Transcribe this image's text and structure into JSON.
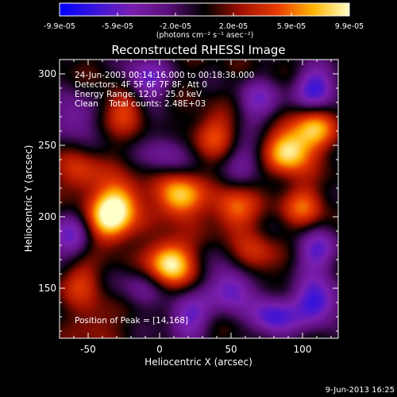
{
  "colorbar": {
    "ticks": [
      "-9.9e-05",
      "-5.9e-05",
      "-2.0e-05",
      "2.0e-05",
      "5.9e-05",
      "9.9e-05"
    ],
    "units": "(photons cm⁻² s⁻¹ asec⁻²)",
    "colors": [
      "#0000ff",
      "#3a14d8",
      "#7a1fb0",
      "#5a0f78",
      "#000000",
      "#a01000",
      "#e83a00",
      "#ffb400",
      "#ffffc8"
    ]
  },
  "chart_data": {
    "type": "heatmap",
    "title": "Reconstructed RHESSI Image",
    "xlabel": "Heliocentric X (arcsec)",
    "ylabel": "Heliocentric Y (arcsec)",
    "xlim": [
      -70,
      125
    ],
    "ylim": [
      115,
      310
    ],
    "xticks": [
      "-50",
      "0",
      "50",
      "100"
    ],
    "yticks": [
      "150",
      "200",
      "250",
      "300"
    ],
    "xtick_values": [
      -50,
      0,
      50,
      100
    ],
    "ytick_values": [
      150,
      200,
      250,
      300
    ],
    "annotations": [
      "24-Jun-2003 00:14:16.000 to 00:18:38.000",
      "Detectors: 4F 5F 6F 7F 8F, Att 0",
      "Energy Range: 12.0 - 25.0 keV",
      "Clean    Total counts: 2.48E+03"
    ],
    "peak_label": "Position of Peak = [14,168]",
    "peak": [
      14,
      168
    ],
    "sources": [
      {
        "x": 14,
        "y": 214,
        "s": 9e-05
      },
      {
        "x": 7,
        "y": 168,
        "s": 9.9e-05
      },
      {
        "x": -35,
        "y": 196,
        "s": 8.5e-05
      },
      {
        "x": -28,
        "y": 212,
        "s": 7.5e-05
      },
      {
        "x": 90,
        "y": 246,
        "s": 9.5e-05
      },
      {
        "x": 108,
        "y": 262,
        "s": 7e-05
      },
      {
        "x": 52,
        "y": 205,
        "s": 6e-05
      },
      {
        "x": -25,
        "y": 276,
        "s": 5e-05
      },
      {
        "x": 38,
        "y": 258,
        "s": 5e-05
      },
      {
        "x": -55,
        "y": 230,
        "s": 4.5e-05
      },
      {
        "x": -55,
        "y": 155,
        "s": 4e-05
      },
      {
        "x": 68,
        "y": 172,
        "s": 4e-05
      },
      {
        "x": 100,
        "y": 208,
        "s": 5e-05
      },
      {
        "x": -45,
        "y": 125,
        "s": 3e-05
      },
      {
        "x": 80,
        "y": 130,
        "s": -7e-05
      },
      {
        "x": 110,
        "y": 140,
        "s": -8e-05
      },
      {
        "x": 50,
        "y": 150,
        "s": -7e-05
      },
      {
        "x": 20,
        "y": 130,
        "s": -6e-05
      },
      {
        "x": -10,
        "y": 295,
        "s": -6.5e-05
      },
      {
        "x": -60,
        "y": 270,
        "s": -5e-05
      },
      {
        "x": 110,
        "y": 290,
        "s": -7.5e-05
      },
      {
        "x": 70,
        "y": 280,
        "s": -5e-05
      },
      {
        "x": -62,
        "y": 185,
        "s": -5.5e-05
      },
      {
        "x": 110,
        "y": 175,
        "s": -6e-05
      },
      {
        "x": 5,
        "y": 245,
        "s": -4e-05
      },
      {
        "x": 60,
        "y": 240,
        "s": -3.5e-05
      },
      {
        "x": -15,
        "y": 150,
        "s": -3e-05
      }
    ]
  },
  "footer": {
    "date": "9-Jun-2013 16:25"
  }
}
